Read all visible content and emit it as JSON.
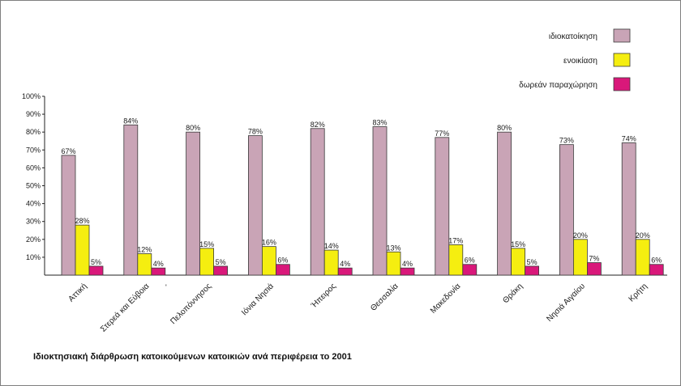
{
  "chart_data": {
    "type": "bar",
    "title": "Ιδιοκτησιακή διάρθρωση κατοικούμενων κατοικιών ανά περιφέρεια το 2001",
    "xlabel": "",
    "ylabel": "",
    "ylim": [
      0,
      100
    ],
    "yticks": [
      "10%",
      "20%",
      "30%",
      "40%",
      "50%",
      "60%",
      "70%",
      "80%",
      "90%",
      "100%"
    ],
    "categories": [
      "Αττική",
      "Στερεά και Εύβοια",
      "Πελοπόννησος",
      "Ιόνια Νησιά",
      "Ήπειρος",
      "Θεσσαλία",
      "Μακεδονία",
      "Θράκη",
      "Νησιά Αιγαίου",
      "Κρήτη"
    ],
    "series": [
      {
        "name": "ιδιοκατοίκηση",
        "color": "#c9a4b6",
        "values": [
          67,
          84,
          80,
          78,
          82,
          83,
          77,
          80,
          73,
          74
        ]
      },
      {
        "name": "ενοικίαση",
        "color": "#f5ee10",
        "values": [
          28,
          12,
          15,
          16,
          14,
          13,
          17,
          15,
          20,
          20
        ]
      },
      {
        "name": "δωρεάν παραχώρηση",
        "color": "#d9187a",
        "values": [
          5,
          4,
          5,
          6,
          4,
          4,
          6,
          5,
          7,
          6
        ]
      }
    ],
    "legend_position": "top-right",
    "grid": false
  },
  "annotations": {
    "stray_mark": "'"
  }
}
